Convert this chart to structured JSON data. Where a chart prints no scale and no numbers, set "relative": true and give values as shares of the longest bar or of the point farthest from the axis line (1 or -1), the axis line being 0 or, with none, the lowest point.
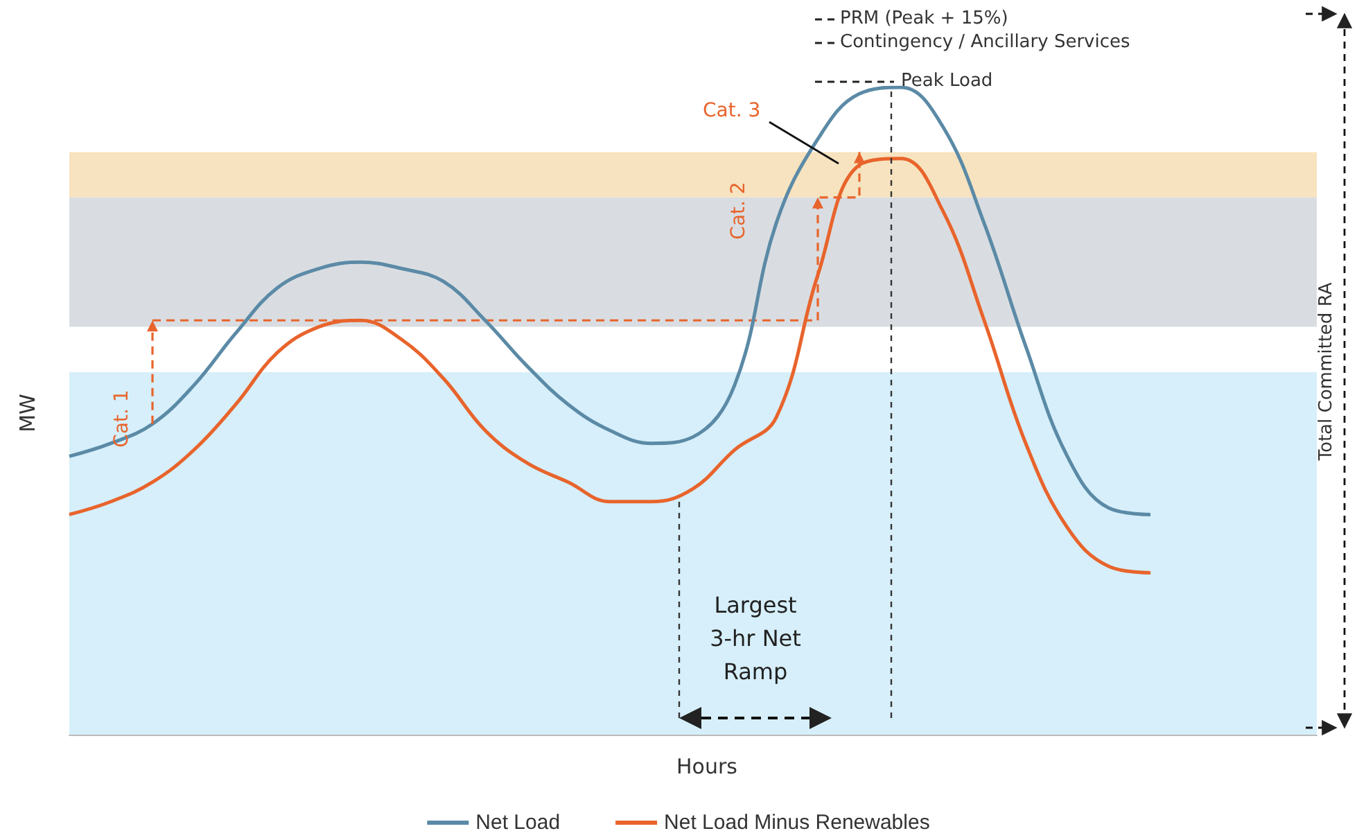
{
  "chart_data": {
    "type": "line",
    "relative": true,
    "xlabel": "Hours",
    "ylabel": "MW",
    "categories": [
      null,
      null,
      null,
      null,
      null,
      null,
      null,
      null,
      null,
      null,
      null,
      null,
      null,
      null,
      null,
      null,
      null,
      null,
      null,
      null,
      null,
      null,
      null,
      null,
      null,
      null,
      null,
      null,
      null,
      null,
      null
    ],
    "series": [
      {
        "name": "Net Load",
        "color": "#5b8aa6",
        "values": [
          0.43,
          0.45,
          0.48,
          0.54,
          0.62,
          0.69,
          0.72,
          0.73,
          0.72,
          0.7,
          0.64,
          0.57,
          0.51,
          0.47,
          0.45,
          0.46,
          0.54,
          0.79,
          0.92,
          0.99,
          1.0,
          0.94,
          0.79,
          0.6,
          0.43,
          0.35,
          0.34,
          null,
          null,
          null,
          null
        ]
      },
      {
        "name": "Net Load Minus Renewables",
        "color": "#e8642c",
        "values": [
          0.34,
          0.36,
          0.39,
          0.44,
          0.51,
          0.59,
          0.63,
          0.64,
          0.61,
          0.55,
          0.47,
          0.42,
          0.39,
          0.36,
          0.36,
          0.38,
          0.44,
          0.49,
          0.71,
          0.88,
          0.89,
          0.81,
          0.64,
          0.45,
          0.32,
          0.26,
          0.25,
          null,
          null,
          null,
          null
        ]
      },
      {
        "type": "step",
        "color": "#e8642c",
        "line_style": "dashed",
        "values": [
          null,
          null,
          0.64,
          0.64,
          0.64,
          0.64,
          0.64,
          0.64,
          0.64,
          0.64,
          0.64,
          0.64,
          0.64,
          0.64,
          0.64,
          0.64,
          0.64,
          0.64,
          0.83,
          0.9,
          null,
          null,
          null,
          null,
          null,
          null,
          null,
          null,
          null,
          null,
          null
        ]
      }
    ],
    "bands": [
      {
        "axis": "y",
        "from": 0,
        "to": 0.56,
        "color": "#d6effa"
      },
      {
        "axis": "y",
        "from": 0.63,
        "to": 0.83,
        "color": "#d9dde1"
      },
      {
        "axis": "y",
        "from": 0.83,
        "to": 0.9,
        "color": "#f7e3bf"
      }
    ],
    "annotations": [
      "PRM (Peak + 15%)",
      "Contingency / Ancillary Services",
      "Peak Load",
      "Cat. 1",
      "Cat. 2",
      "Cat. 3",
      "Largest 3-hr Net Ramp",
      "Total Committed RA"
    ],
    "legend": "bottom",
    "marker": "none",
    "line_style": "solid",
    "grid": false
  }
}
